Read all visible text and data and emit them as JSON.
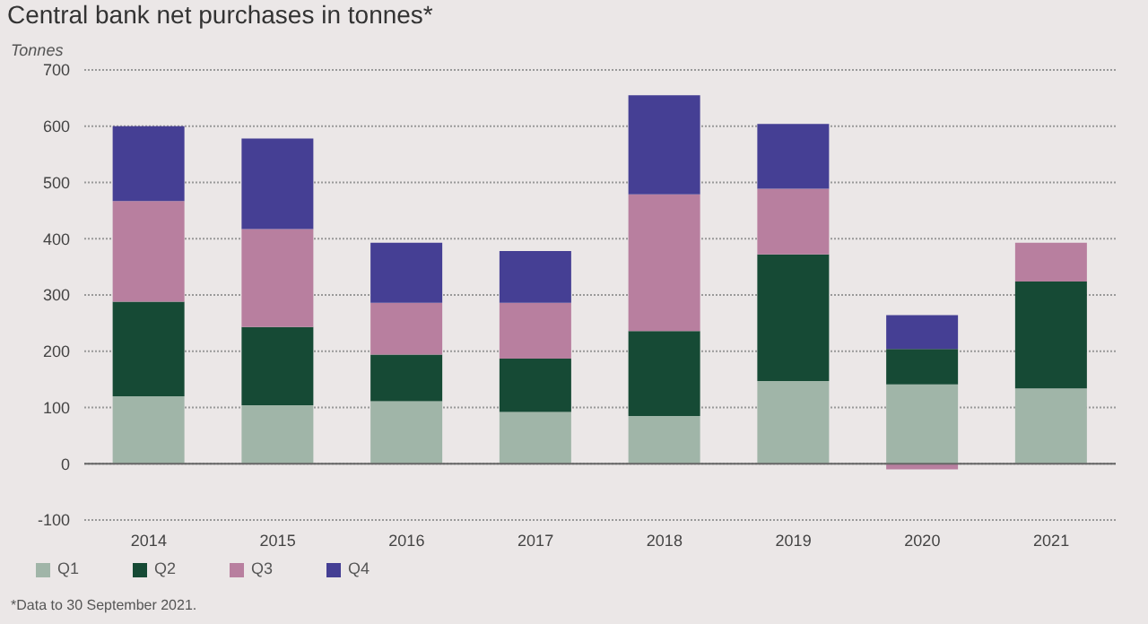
{
  "chart_data": {
    "type": "bar",
    "title": "Central bank net purchases in tonnes*",
    "ylabel": "Tonnes",
    "categories": [
      "2014",
      "2015",
      "2016",
      "2017",
      "2018",
      "2019",
      "2020",
      "2021"
    ],
    "stacked": true,
    "series": [
      {
        "name": "Q1",
        "color": "#a0b5a8",
        "values": [
          120,
          104,
          111,
          92,
          85,
          147,
          141,
          134
        ]
      },
      {
        "name": "Q2",
        "color": "#164a35",
        "values": [
          168,
          139,
          83,
          95,
          151,
          225,
          63,
          190
        ]
      },
      {
        "name": "Q3",
        "color": "#b87f9f",
        "values": [
          179,
          174,
          92,
          99,
          243,
          117,
          -10,
          69
        ]
      },
      {
        "name": "Q4",
        "color": "#453f94",
        "values": [
          133,
          161,
          107,
          92,
          176,
          115,
          60,
          null
        ]
      }
    ],
    "ylim": [
      -100,
      700
    ],
    "yticks": [
      -100,
      0,
      100,
      200,
      300,
      400,
      500,
      600,
      700
    ],
    "grid": "y",
    "legend": "bottom left",
    "annotations": [
      "*Data to 30 September 2021."
    ]
  }
}
